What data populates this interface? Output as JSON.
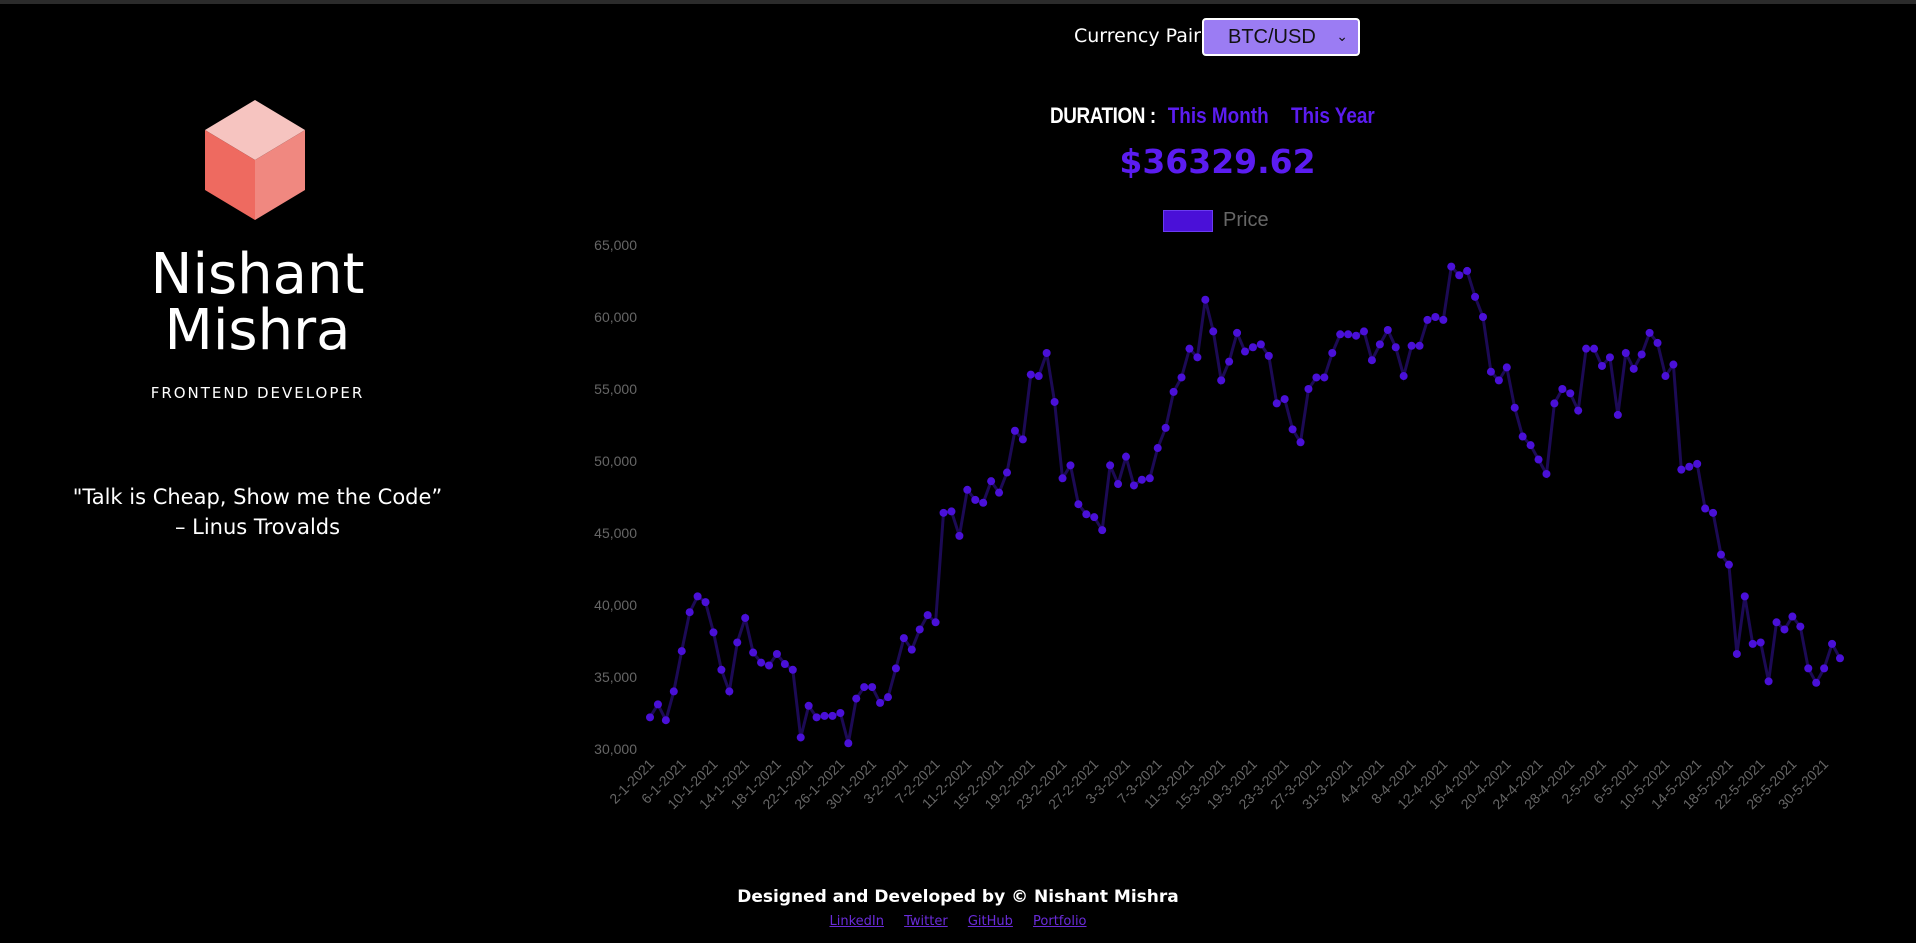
{
  "brand": {
    "first_name": "Nishant",
    "last_name": "Mishra",
    "role": "FRONTEND DEVELOPER",
    "quote": "\"Talk is Cheap, Show me the Code”",
    "quote_author": "– Linus Trovalds",
    "logo_colors": {
      "top": "#f6c4c0",
      "left": "#ee6a60",
      "right": "#f08880"
    }
  },
  "controls": {
    "currency_label": "Currency Pair",
    "currency_selected": "BTC/USD",
    "duration_label": "DURATION :",
    "this_month": "This Month",
    "this_year": "This Year",
    "accent_color": "#5b1cf0"
  },
  "price": "$36329.62",
  "chart_data": {
    "type": "line",
    "series": [
      {
        "name": "Price",
        "values": [
          32200,
          33100,
          32000,
          34000,
          36800,
          39500,
          40600,
          40200,
          38100,
          35500,
          34000,
          37400,
          39100,
          36700,
          36000,
          35800,
          36600,
          35900,
          35500,
          30800,
          33000,
          32200,
          32300,
          32300,
          32500,
          30400,
          33500,
          34300,
          34300,
          33200,
          33600,
          35600,
          37700,
          36900,
          38300,
          39300,
          38800,
          46400,
          46500,
          44800,
          48000,
          47300,
          47100,
          48600,
          47800,
          49200,
          52100,
          51500,
          56000,
          55900,
          57500,
          54100,
          48800,
          49700,
          47000,
          46300,
          46100,
          45200,
          49700,
          48400,
          50300,
          48300,
          48700,
          48800,
          50900,
          52300,
          54800,
          55800,
          57800,
          57200,
          61200,
          59000,
          55600,
          56900,
          58900,
          57600,
          57900,
          58100,
          57300,
          54000,
          54300,
          52200,
          51300,
          55000,
          55800,
          55800,
          57500,
          58800,
          58800,
          58700,
          59000,
          57000,
          58100,
          59100,
          57900,
          55900,
          58000,
          58000,
          59800,
          60000,
          59800,
          63500,
          62900,
          63200,
          61400,
          60000,
          56200,
          55600,
          56500,
          53700,
          51700,
          51100,
          50100,
          49100,
          54000,
          55000,
          54700,
          53500,
          57800,
          57800,
          56600,
          57200,
          53200,
          57500,
          56400,
          57400,
          58900,
          58200,
          55900,
          56700,
          49400,
          49600,
          49800,
          46700,
          46400,
          43500,
          42800,
          36600,
          40600,
          37300,
          37400,
          34700,
          38800,
          38300,
          39200,
          38500,
          35600,
          34600,
          35600,
          37300,
          36300
        ]
      }
    ],
    "x_tick_labels": [
      "2-1-2021",
      "6-1-2021",
      "10-1-2021",
      "14-1-2021",
      "18-1-2021",
      "22-1-2021",
      "26-1-2021",
      "30-1-2021",
      "3-2-2021",
      "7-2-2021",
      "11-2-2021",
      "15-2-2021",
      "19-2-2021",
      "23-2-2021",
      "27-2-2021",
      "3-3-2021",
      "7-3-2021",
      "11-3-2021",
      "15-3-2021",
      "19-3-2021",
      "23-3-2021",
      "27-3-2021",
      "31-3-2021",
      "4-4-2021",
      "8-4-2021",
      "12-4-2021",
      "16-4-2021",
      "20-4-2021",
      "24-4-2021",
      "28-4-2021",
      "2-5-2021",
      "6-5-2021",
      "10-5-2021",
      "14-5-2021",
      "18-5-2021",
      "22-5-2021",
      "26-5-2021",
      "30-5-2021"
    ],
    "y_ticks": [
      "65,000",
      "60,000",
      "55,000",
      "50,000",
      "45,000",
      "40,000",
      "35,000",
      "30,000"
    ],
    "ylim": [
      30000,
      65000
    ],
    "line_color": "#1c0a55",
    "point_color": "#4a10d8",
    "legend": "top-center",
    "grid": false
  },
  "footer": {
    "credit": "Designed and Developed by © Nishant Mishra",
    "links": [
      "LinkedIn",
      "Twitter",
      "GitHub",
      "Portfolio"
    ]
  }
}
